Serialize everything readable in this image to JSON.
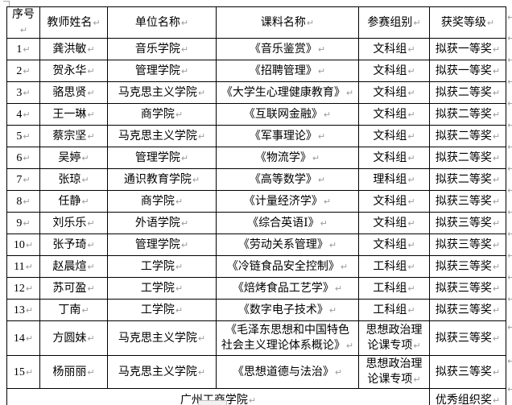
{
  "marks": {
    "end_of_cell": "↵",
    "end_of_row": "↵"
  },
  "table": {
    "headers": [
      "序号",
      "教师姓名",
      "单位名称",
      "课料名称",
      "参赛组别",
      "获奖等级"
    ],
    "rows": [
      [
        "1",
        "龚洪敏",
        "音乐学院",
        "《音乐鉴赏》",
        "文科组",
        "拟获一等奖"
      ],
      [
        "2",
        "贺永华",
        "管理学院",
        "《招聘管理》",
        "文科组",
        "拟获一等奖"
      ],
      [
        "3",
        "骆思贤",
        "马克思主义学院",
        "《大学生心理健康教育》",
        "文科组",
        "拟获二等奖"
      ],
      [
        "4",
        "王一琳",
        "商学院",
        "《互联网金融》",
        "文科组",
        "拟获二等奖"
      ],
      [
        "5",
        "蔡宗坚",
        "马克思主义学院",
        "《军事理论》",
        "文科组",
        "拟获二等奖"
      ],
      [
        "6",
        "吴婷",
        "管理学院",
        "《物流学》",
        "文科组",
        "拟获二等奖"
      ],
      [
        "7",
        "张琼",
        "通识教育学院",
        "《高等数学》",
        "理科组",
        "拟获二等奖"
      ],
      [
        "8",
        "任静",
        "商学院",
        "《计量经济学》",
        "文科组",
        "拟获三等奖"
      ],
      [
        "9",
        "刘乐乐",
        "外语学院",
        "《综合英语Ⅰ》",
        "文科组",
        "拟获三等奖"
      ],
      [
        "10",
        "张予琦",
        "管理学院",
        "《劳动关系管理》",
        "文科组",
        "拟获三等奖"
      ],
      [
        "11",
        "赵晨煊",
        "工学院",
        "《冷链食品安全控制》",
        "工科组",
        "拟获三等奖"
      ],
      [
        "12",
        "苏可盈",
        "工学院",
        "《焙烤食品工艺学》",
        "工科组",
        "拟获三等奖"
      ],
      [
        "13",
        "丁南",
        "工学院",
        "《数字电子技术》",
        "工科组",
        "拟获三等奖"
      ],
      [
        "14",
        "方圆妹",
        "马克思主义学院",
        "《毛泽东思想和中国特色\n社会主义理论体系概论》",
        "思想政治理\n论课专项",
        "拟获三等奖"
      ],
      [
        "15",
        "杨丽丽",
        "马克思主义学院",
        "《思想道德与法治》",
        "思想政治理\n论课专项",
        "拟获三等奖"
      ]
    ],
    "footer": {
      "organization": "广州工商学院",
      "award": "优秀组织奖"
    }
  }
}
